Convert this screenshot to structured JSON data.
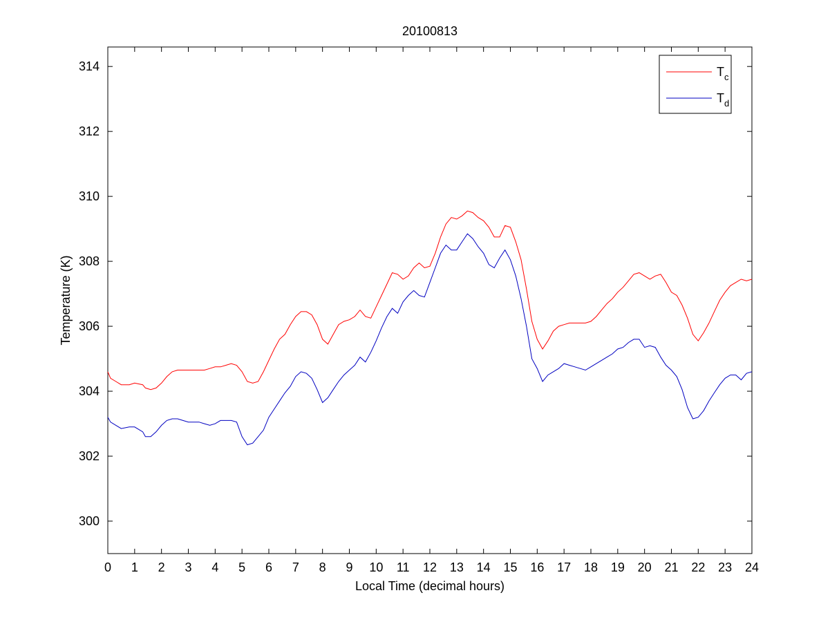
{
  "chart_data": {
    "type": "line",
    "title": "20100813",
    "xlabel": "Local Time (decimal hours)",
    "ylabel": "Temperature (K)",
    "xlim": [
      0,
      24
    ],
    "ylim": [
      299,
      314.6
    ],
    "xticks": [
      0,
      1,
      2,
      3,
      4,
      5,
      6,
      7,
      8,
      9,
      10,
      11,
      12,
      13,
      14,
      15,
      16,
      17,
      18,
      19,
      20,
      21,
      22,
      23,
      24
    ],
    "yticks": [
      300,
      302,
      304,
      306,
      308,
      310,
      312,
      314
    ],
    "grid": false,
    "legend_position": "top-right",
    "series": [
      {
        "name": "T",
        "subscript": "c",
        "color": "#ff0000",
        "x": [
          0,
          0.1,
          0.3,
          0.5,
          0.8,
          1.0,
          1.3,
          1.4,
          1.6,
          1.8,
          2.0,
          2.2,
          2.4,
          2.6,
          2.8,
          3.0,
          3.2,
          3.4,
          3.6,
          3.8,
          4.0,
          4.2,
          4.4,
          4.6,
          4.8,
          5.0,
          5.2,
          5.4,
          5.6,
          5.8,
          6.0,
          6.2,
          6.4,
          6.6,
          6.8,
          7.0,
          7.2,
          7.4,
          7.6,
          7.8,
          8.0,
          8.2,
          8.4,
          8.6,
          8.8,
          9.0,
          9.2,
          9.4,
          9.6,
          9.8,
          10.0,
          10.2,
          10.4,
          10.6,
          10.8,
          11.0,
          11.2,
          11.4,
          11.6,
          11.8,
          12.0,
          12.2,
          12.4,
          12.6,
          12.8,
          13.0,
          13.2,
          13.4,
          13.6,
          13.8,
          14.0,
          14.2,
          14.4,
          14.6,
          14.8,
          15.0,
          15.2,
          15.4,
          15.6,
          15.8,
          16.0,
          16.2,
          16.4,
          16.6,
          16.8,
          17.0,
          17.2,
          17.4,
          17.6,
          17.8,
          18.0,
          18.2,
          18.4,
          18.6,
          18.8,
          19.0,
          19.2,
          19.4,
          19.6,
          19.8,
          20.0,
          20.2,
          20.4,
          20.6,
          20.8,
          21.0,
          21.2,
          21.4,
          21.6,
          21.8,
          22.0,
          22.2,
          22.4,
          22.6,
          22.8,
          23.0,
          23.2,
          23.4,
          23.6,
          23.8,
          24.0
        ],
        "y": [
          304.6,
          304.4,
          304.3,
          304.2,
          304.2,
          304.25,
          304.2,
          304.1,
          304.05,
          304.1,
          304.25,
          304.45,
          304.6,
          304.65,
          304.65,
          304.65,
          304.65,
          304.65,
          304.65,
          304.7,
          304.75,
          304.75,
          304.8,
          304.85,
          304.8,
          304.6,
          304.3,
          304.25,
          304.3,
          304.6,
          304.95,
          305.3,
          305.6,
          305.75,
          306.05,
          306.3,
          306.45,
          306.45,
          306.35,
          306.05,
          305.6,
          305.45,
          305.75,
          306.05,
          306.15,
          306.2,
          306.3,
          306.5,
          306.3,
          306.25,
          306.6,
          306.95,
          307.3,
          307.65,
          307.6,
          307.45,
          307.55,
          307.8,
          307.95,
          307.8,
          307.85,
          308.25,
          308.75,
          309.15,
          309.35,
          309.3,
          309.4,
          309.55,
          309.5,
          309.35,
          309.25,
          309.05,
          308.75,
          308.75,
          309.1,
          309.05,
          308.6,
          308.05,
          307.15,
          306.15,
          305.6,
          305.3,
          305.55,
          305.85,
          306.0,
          306.05,
          306.1,
          306.1,
          306.1,
          306.1,
          306.15,
          306.3,
          306.5,
          306.7,
          306.85,
          307.05,
          307.2,
          307.4,
          307.6,
          307.65,
          307.55,
          307.45,
          307.55,
          307.6,
          307.35,
          307.05,
          306.95,
          306.65,
          306.25,
          305.75,
          305.55,
          305.8,
          306.1,
          306.45,
          306.8,
          307.05,
          307.25,
          307.35,
          307.45,
          307.4,
          307.45
        ]
      },
      {
        "name": "T",
        "subscript": "d",
        "color": "#0000c0",
        "x": [
          0,
          0.1,
          0.3,
          0.5,
          0.8,
          1.0,
          1.3,
          1.4,
          1.6,
          1.8,
          2.0,
          2.2,
          2.4,
          2.6,
          2.8,
          3.0,
          3.2,
          3.4,
          3.6,
          3.8,
          4.0,
          4.2,
          4.4,
          4.6,
          4.8,
          5.0,
          5.2,
          5.4,
          5.6,
          5.8,
          6.0,
          6.2,
          6.4,
          6.6,
          6.8,
          7.0,
          7.2,
          7.4,
          7.6,
          7.8,
          8.0,
          8.2,
          8.4,
          8.6,
          8.8,
          9.0,
          9.2,
          9.4,
          9.6,
          9.8,
          10.0,
          10.2,
          10.4,
          10.6,
          10.8,
          11.0,
          11.2,
          11.4,
          11.6,
          11.8,
          12.0,
          12.2,
          12.4,
          12.6,
          12.8,
          13.0,
          13.2,
          13.4,
          13.6,
          13.8,
          14.0,
          14.2,
          14.4,
          14.6,
          14.8,
          15.0,
          15.2,
          15.4,
          15.6,
          15.8,
          16.0,
          16.2,
          16.4,
          16.6,
          16.8,
          17.0,
          17.2,
          17.4,
          17.6,
          17.8,
          18.0,
          18.2,
          18.4,
          18.6,
          18.8,
          19.0,
          19.2,
          19.4,
          19.6,
          19.8,
          20.0,
          20.2,
          20.4,
          20.6,
          20.8,
          21.0,
          21.2,
          21.4,
          21.6,
          21.8,
          22.0,
          22.2,
          22.4,
          22.6,
          22.8,
          23.0,
          23.2,
          23.4,
          23.6,
          23.8,
          24.0
        ],
        "y": [
          303.2,
          303.05,
          302.95,
          302.85,
          302.9,
          302.9,
          302.75,
          302.6,
          302.6,
          302.75,
          302.95,
          303.1,
          303.15,
          303.15,
          303.1,
          303.05,
          303.05,
          303.05,
          303.0,
          302.95,
          303.0,
          303.1,
          303.1,
          303.1,
          303.05,
          302.6,
          302.35,
          302.4,
          302.6,
          302.8,
          303.2,
          303.45,
          303.7,
          303.95,
          304.15,
          304.45,
          304.6,
          304.55,
          304.4,
          304.05,
          303.65,
          303.8,
          304.05,
          304.3,
          304.5,
          304.65,
          304.8,
          305.05,
          304.9,
          305.2,
          305.55,
          305.95,
          306.3,
          306.55,
          306.4,
          306.75,
          306.95,
          307.1,
          306.95,
          306.9,
          307.35,
          307.8,
          308.25,
          308.5,
          308.35,
          308.35,
          308.6,
          308.85,
          308.7,
          308.45,
          308.25,
          307.9,
          307.8,
          308.1,
          308.35,
          308.05,
          307.55,
          306.85,
          306.0,
          305.0,
          304.7,
          304.3,
          304.5,
          304.6,
          304.7,
          304.85,
          304.8,
          304.75,
          304.7,
          304.65,
          304.75,
          304.85,
          304.95,
          305.05,
          305.15,
          305.3,
          305.35,
          305.5,
          305.6,
          305.6,
          305.35,
          305.4,
          305.35,
          305.05,
          304.8,
          304.65,
          304.45,
          304.05,
          303.5,
          303.15,
          303.2,
          303.4,
          303.7,
          303.95,
          304.2,
          304.4,
          304.5,
          304.5,
          304.35,
          304.55,
          304.6
        ]
      }
    ]
  }
}
